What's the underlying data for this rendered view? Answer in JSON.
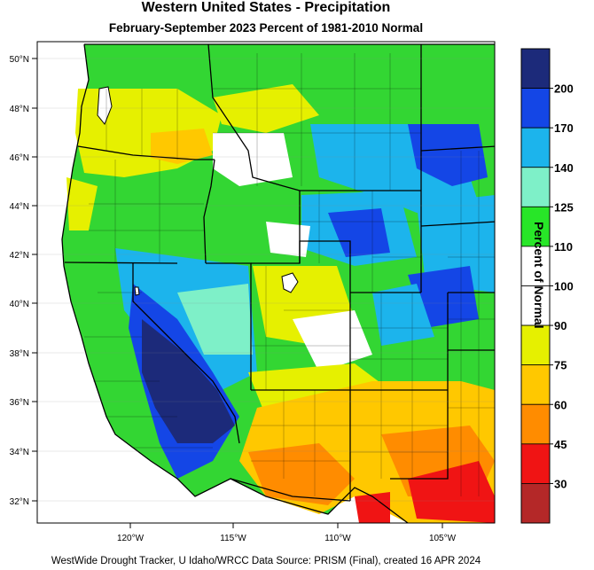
{
  "title": "Western United States - Precipitation",
  "subtitle": "February-September 2023  Percent of 1981-2010 Normal",
  "footer": "WestWide Drought Tracker, U Idaho/WRCC Data Source: PRISM (Final), created 16 APR 2024",
  "colorbar": {
    "title": "Percent of Normal",
    "ticks": [
      "200",
      "170",
      "140",
      "125",
      "110",
      "100",
      "90",
      "75",
      "60",
      "45",
      "30"
    ],
    "colors": [
      "#1c2a7a",
      "#1446e6",
      "#1cb4ec",
      "#7ef0c8",
      "#28e628",
      "#ffffff",
      "#ffffff",
      "#e6f000",
      "#ffc800",
      "#ff8c00",
      "#f01414",
      "#b42828"
    ]
  },
  "map": {
    "lat_labels": [
      "50°N",
      "48°N",
      "46°N",
      "44°N",
      "42°N",
      "40°N",
      "38°N",
      "36°N",
      "34°N",
      "32°N"
    ],
    "lon_labels": [
      "120°W",
      "115°W",
      "110°W",
      "105°W"
    ]
  }
}
